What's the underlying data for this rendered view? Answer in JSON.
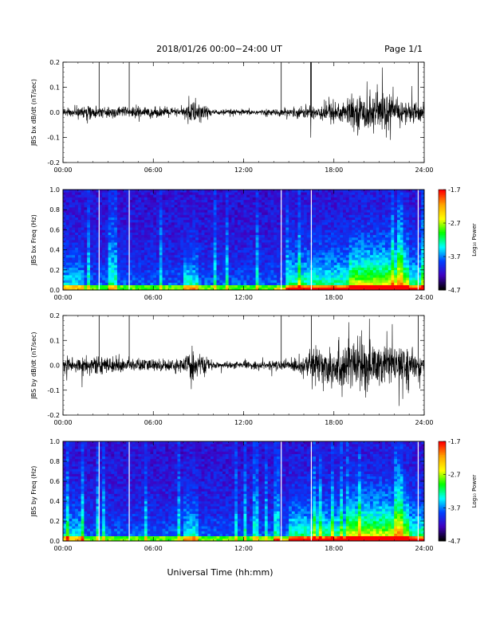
{
  "header": {
    "title": "2018/01/26  00:00−24:00 UT",
    "page": "Page 1/1"
  },
  "colorbar": {
    "label": "Log₁₀ Power",
    "ticks": [
      "-1.7",
      "-2.7",
      "-3.7",
      "-4.7"
    ],
    "colors": [
      "#ff0000",
      "#ffa500",
      "#ffff00",
      "#00ff00",
      "#00ffff",
      "#0040ff",
      "#4000c0",
      "#000000"
    ]
  },
  "chart_data": [
    {
      "type": "line",
      "ylabel": "JBS bx dB/dt (nT/sec)",
      "xlim": [
        "00:00",
        "24:00"
      ],
      "ylim": [
        -0.2,
        0.2
      ],
      "x_ticks": [
        "00:00",
        "06:00",
        "12:00",
        "18:00",
        "24:00"
      ],
      "y_ticks": [
        "0.2",
        "0.1",
        "0.0",
        "-0.1",
        "-0.2"
      ],
      "spikes_utc_hours": [
        2.4,
        4.4,
        14.5,
        16.45,
        16.5,
        23.6
      ],
      "amplitude_envelope": [
        {
          "t": 0.0,
          "amp": 0.015
        },
        {
          "t": 2.0,
          "amp": 0.02
        },
        {
          "t": 4.0,
          "amp": 0.02
        },
        {
          "t": 8.0,
          "amp": 0.015
        },
        {
          "t": 8.5,
          "amp": 0.05
        },
        {
          "t": 10.0,
          "amp": 0.01
        },
        {
          "t": 14.0,
          "amp": 0.01
        },
        {
          "t": 16.0,
          "amp": 0.02
        },
        {
          "t": 18.0,
          "amp": 0.04
        },
        {
          "t": 20.0,
          "amp": 0.06
        },
        {
          "t": 21.0,
          "amp": 0.08
        },
        {
          "t": 22.0,
          "amp": 0.05
        },
        {
          "t": 24.0,
          "amp": 0.03
        }
      ]
    },
    {
      "type": "heatmap",
      "ylabel": "JBS bx Freq (Hz)",
      "xlim": [
        "00:00",
        "24:00"
      ],
      "ylim": [
        0.0,
        1.0
      ],
      "x_ticks": [
        "00:00",
        "06:00",
        "12:00",
        "18:00",
        "24:00"
      ],
      "y_ticks": [
        "1.0",
        "0.8",
        "0.6",
        "0.4",
        "0.2",
        "0.0"
      ],
      "color_range": [
        -4.7,
        -1.7
      ],
      "gap_utc_hours": [
        2.4,
        4.4,
        14.5,
        16.5,
        23.6
      ]
    },
    {
      "type": "line",
      "ylabel": "JBS by dB/dt (nT/sec)",
      "xlim": [
        "00:00",
        "24:00"
      ],
      "ylim": [
        -0.2,
        0.2
      ],
      "x_ticks": [
        "00:00",
        "06:00",
        "12:00",
        "18:00",
        "24:00"
      ],
      "y_ticks": [
        "0.2",
        "0.1",
        "0.0",
        "-0.1",
        "-0.2"
      ],
      "spikes_utc_hours": [
        2.4,
        4.4,
        14.5,
        16.5,
        23.6
      ],
      "amplitude_envelope": [
        {
          "t": 0.0,
          "amp": 0.03
        },
        {
          "t": 2.0,
          "amp": 0.03
        },
        {
          "t": 4.0,
          "amp": 0.025
        },
        {
          "t": 8.0,
          "amp": 0.02
        },
        {
          "t": 8.5,
          "amp": 0.06
        },
        {
          "t": 10.0,
          "amp": 0.01
        },
        {
          "t": 14.0,
          "amp": 0.015
        },
        {
          "t": 16.0,
          "amp": 0.03
        },
        {
          "t": 17.0,
          "amp": 0.07
        },
        {
          "t": 19.0,
          "amp": 0.09
        },
        {
          "t": 21.0,
          "amp": 0.08
        },
        {
          "t": 23.0,
          "amp": 0.05
        },
        {
          "t": 24.0,
          "amp": 0.04
        }
      ]
    },
    {
      "type": "heatmap",
      "ylabel": "JBS by Freq (Hz)",
      "xlim": [
        "00:00",
        "24:00"
      ],
      "ylim": [
        0.0,
        1.0
      ],
      "x_ticks": [
        "00:00",
        "06:00",
        "12:00",
        "18:00",
        "24:00"
      ],
      "y_ticks": [
        "1.0",
        "0.8",
        "0.6",
        "0.4",
        "0.2",
        "0.0"
      ],
      "color_range": [
        -4.7,
        -1.7
      ],
      "gap_utc_hours": [
        2.4,
        4.4,
        14.5,
        16.5,
        23.6
      ]
    }
  ],
  "xlabel": "Universal Time (hh:mm)"
}
